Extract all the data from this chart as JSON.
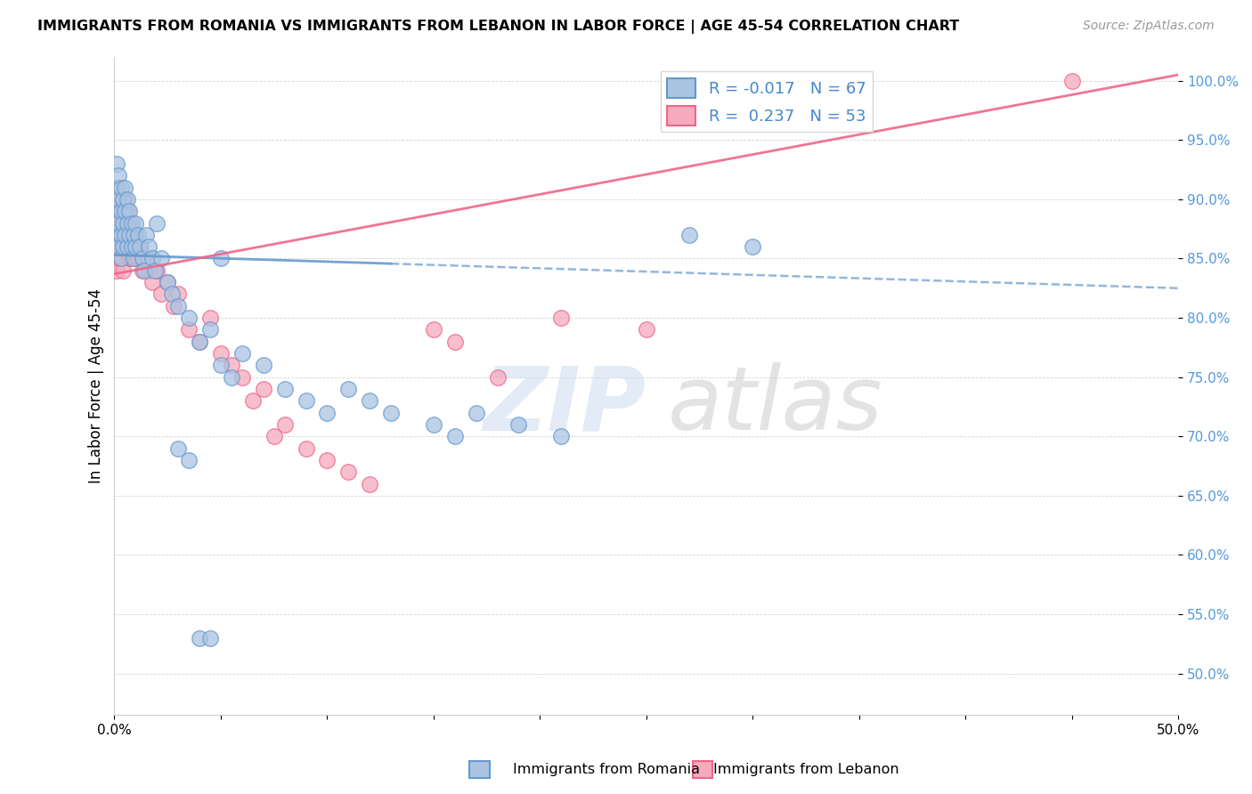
{
  "title": "IMMIGRANTS FROM ROMANIA VS IMMIGRANTS FROM LEBANON IN LABOR FORCE | AGE 45-54 CORRELATION CHART",
  "source": "Source: ZipAtlas.com",
  "ylabel": "In Labor Force | Age 45-54",
  "xlim": [
    0.0,
    0.5
  ],
  "ylim": [
    0.465,
    1.02
  ],
  "yticks": [
    0.5,
    0.55,
    0.6,
    0.65,
    0.7,
    0.75,
    0.8,
    0.85,
    0.9,
    0.95,
    1.0
  ],
  "ytick_labels": [
    "50.0%",
    "55.0%",
    "60.0%",
    "65.0%",
    "70.0%",
    "75.0%",
    "80.0%",
    "85.0%",
    "90.0%",
    "95.0%",
    "100.0%"
  ],
  "xticks": [
    0.0,
    0.05,
    0.1,
    0.15,
    0.2,
    0.25,
    0.3,
    0.35,
    0.4,
    0.45,
    0.5
  ],
  "xtick_labels": [
    "0.0%",
    "",
    "",
    "",
    "",
    "",
    "",
    "",
    "",
    "",
    "50.0%"
  ],
  "romania_R": "-0.017",
  "romania_N": "67",
  "lebanon_R": "0.237",
  "lebanon_N": "53",
  "romania_color": "#aac4e2",
  "lebanon_color": "#f5aabe",
  "romania_line_color": "#6699cc",
  "lebanon_line_color": "#ee6688",
  "watermark_zip": "ZIP",
  "watermark_atlas": "atlas",
  "romania_trend_x0": 0.0,
  "romania_trend_y0": 0.853,
  "romania_trend_x1": 0.5,
  "romania_trend_y1": 0.825,
  "lebanon_trend_x0": 0.0,
  "lebanon_trend_y0": 0.837,
  "lebanon_trend_x1": 0.5,
  "lebanon_trend_y1": 1.005,
  "romania_x": [
    0.001,
    0.001,
    0.001,
    0.001,
    0.002,
    0.002,
    0.002,
    0.002,
    0.003,
    0.003,
    0.003,
    0.003,
    0.004,
    0.004,
    0.004,
    0.005,
    0.005,
    0.005,
    0.006,
    0.006,
    0.006,
    0.007,
    0.007,
    0.008,
    0.008,
    0.009,
    0.009,
    0.01,
    0.01,
    0.011,
    0.012,
    0.013,
    0.014,
    0.015,
    0.016,
    0.018,
    0.019,
    0.02,
    0.022,
    0.025,
    0.027,
    0.03,
    0.035,
    0.04,
    0.045,
    0.05,
    0.055,
    0.06,
    0.07,
    0.08,
    0.09,
    0.1,
    0.11,
    0.12,
    0.13,
    0.15,
    0.16,
    0.17,
    0.19,
    0.21,
    0.03,
    0.035,
    0.04,
    0.045,
    0.05,
    0.27,
    0.3
  ],
  "romania_y": [
    0.93,
    0.91,
    0.89,
    0.87,
    0.92,
    0.9,
    0.88,
    0.86,
    0.91,
    0.89,
    0.87,
    0.85,
    0.9,
    0.88,
    0.86,
    0.91,
    0.89,
    0.87,
    0.9,
    0.88,
    0.86,
    0.89,
    0.87,
    0.88,
    0.86,
    0.87,
    0.85,
    0.88,
    0.86,
    0.87,
    0.86,
    0.85,
    0.84,
    0.87,
    0.86,
    0.85,
    0.84,
    0.88,
    0.85,
    0.83,
    0.82,
    0.81,
    0.8,
    0.78,
    0.79,
    0.76,
    0.75,
    0.77,
    0.76,
    0.74,
    0.73,
    0.72,
    0.74,
    0.73,
    0.72,
    0.71,
    0.7,
    0.72,
    0.71,
    0.7,
    0.69,
    0.68,
    0.53,
    0.53,
    0.85,
    0.87,
    0.86
  ],
  "lebanon_x": [
    0.001,
    0.001,
    0.001,
    0.002,
    0.002,
    0.002,
    0.003,
    0.003,
    0.003,
    0.004,
    0.004,
    0.004,
    0.005,
    0.005,
    0.006,
    0.006,
    0.007,
    0.007,
    0.008,
    0.008,
    0.009,
    0.01,
    0.011,
    0.012,
    0.013,
    0.015,
    0.016,
    0.018,
    0.02,
    0.022,
    0.025,
    0.028,
    0.03,
    0.035,
    0.04,
    0.045,
    0.05,
    0.055,
    0.06,
    0.065,
    0.07,
    0.075,
    0.08,
    0.09,
    0.1,
    0.11,
    0.12,
    0.15,
    0.16,
    0.18,
    0.21,
    0.25,
    0.45
  ],
  "lebanon_y": [
    0.88,
    0.86,
    0.84,
    0.9,
    0.87,
    0.85,
    0.89,
    0.87,
    0.85,
    0.88,
    0.86,
    0.84,
    0.9,
    0.87,
    0.89,
    0.86,
    0.88,
    0.85,
    0.87,
    0.85,
    0.86,
    0.87,
    0.85,
    0.86,
    0.84,
    0.85,
    0.84,
    0.83,
    0.84,
    0.82,
    0.83,
    0.81,
    0.82,
    0.79,
    0.78,
    0.8,
    0.77,
    0.76,
    0.75,
    0.73,
    0.74,
    0.7,
    0.71,
    0.69,
    0.68,
    0.67,
    0.66,
    0.79,
    0.78,
    0.75,
    0.8,
    0.79,
    1.0
  ]
}
